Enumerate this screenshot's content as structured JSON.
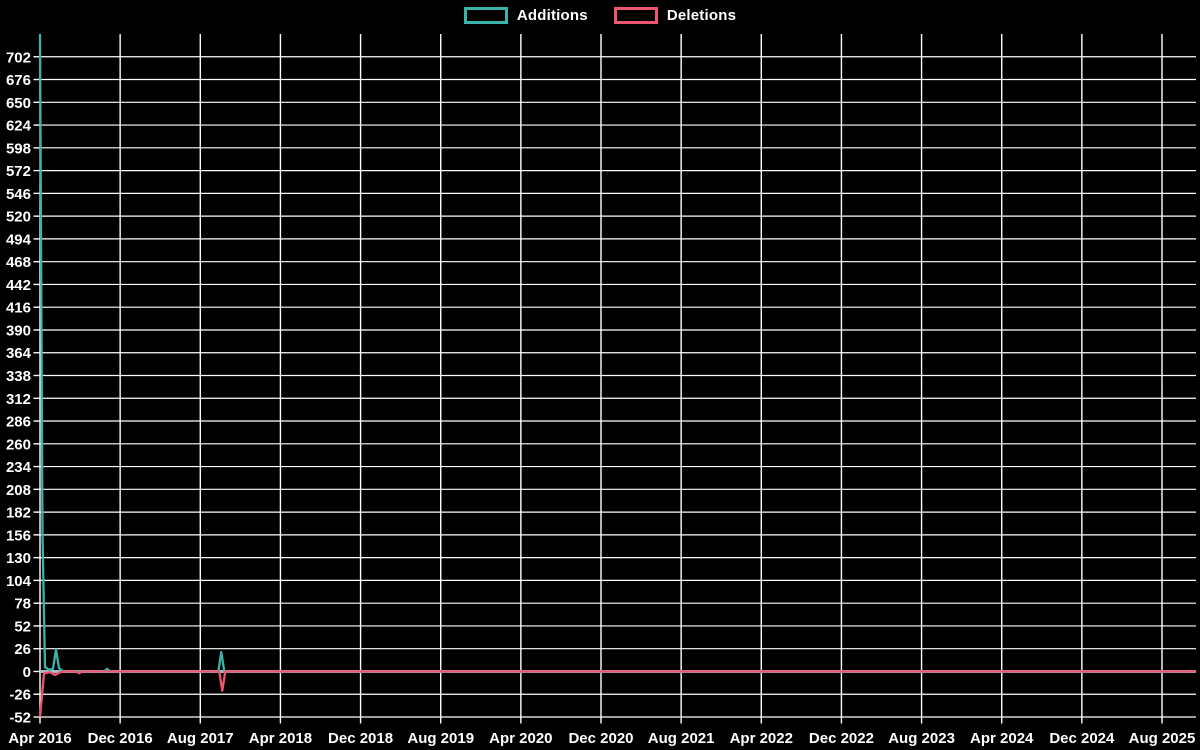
{
  "chart_data": {
    "type": "line",
    "title": "",
    "background_color": "#000000",
    "grid_color": "#ffffff",
    "text_color": "#ffffff",
    "zero_line_color": "#a7bdc5",
    "grid": true,
    "legend_position": "top-center",
    "legend": [
      {
        "label": "Additions",
        "color": "#3bb3aa"
      },
      {
        "label": "Deletions",
        "color": "#ee5571"
      }
    ],
    "x_axis": {
      "tick_labels": [
        "Apr 2016",
        "Dec 2016",
        "Aug 2017",
        "Apr 2018",
        "Dec 2018",
        "Aug 2019",
        "Apr 2020",
        "Dec 2020",
        "Aug 2021",
        "Apr 2022",
        "Dec 2022",
        "Aug 2023",
        "Apr 2024",
        "Dec 2024",
        "Aug 2025"
      ],
      "months_between_ticks": 8,
      "start_month_index": 0,
      "end_month_index": 115.4
    },
    "y_axis": {
      "min": -52,
      "max": 728,
      "step": 26,
      "tick_labels": [
        702,
        676,
        650,
        624,
        598,
        572,
        546,
        520,
        494,
        468,
        442,
        416,
        390,
        364,
        338,
        312,
        286,
        260,
        234,
        208,
        182,
        156,
        130,
        104,
        78,
        52,
        26,
        0,
        -26,
        -52
      ]
    },
    "series": [
      {
        "name": "Additions",
        "color": "#3bb3aa",
        "points": [
          [
            0,
            728
          ],
          [
            0.25,
            156
          ],
          [
            0.5,
            5
          ],
          [
            0.9,
            2
          ],
          [
            1.3,
            3
          ],
          [
            1.6,
            25
          ],
          [
            1.9,
            4
          ],
          [
            2.2,
            1
          ],
          [
            2.6,
            0
          ],
          [
            6.4,
            0
          ],
          [
            6.7,
            3
          ],
          [
            7.0,
            0
          ],
          [
            17.8,
            0
          ],
          [
            18.1,
            22
          ],
          [
            18.4,
            0
          ],
          [
            115.4,
            0
          ]
        ]
      },
      {
        "name": "Deletions",
        "color": "#ee5571",
        "points": [
          [
            0,
            -52
          ],
          [
            0.4,
            -2
          ],
          [
            1.0,
            -1
          ],
          [
            1.5,
            -4
          ],
          [
            2.0,
            -1
          ],
          [
            2.5,
            0
          ],
          [
            3.6,
            0
          ],
          [
            3.9,
            -2
          ],
          [
            4.2,
            0
          ],
          [
            17.9,
            0
          ],
          [
            18.2,
            -22
          ],
          [
            18.5,
            0
          ],
          [
            115.4,
            0
          ]
        ]
      }
    ],
    "notable_points": [
      {
        "month": "Apr 2016",
        "additions": 728,
        "deletions": -52
      },
      {
        "month": "Jun 2016",
        "additions": 25,
        "deletions": -4
      },
      {
        "month": "Nov 2016",
        "additions": 3,
        "deletions": 0
      },
      {
        "month": "Oct 2017",
        "additions": 22,
        "deletions": -22
      }
    ]
  }
}
